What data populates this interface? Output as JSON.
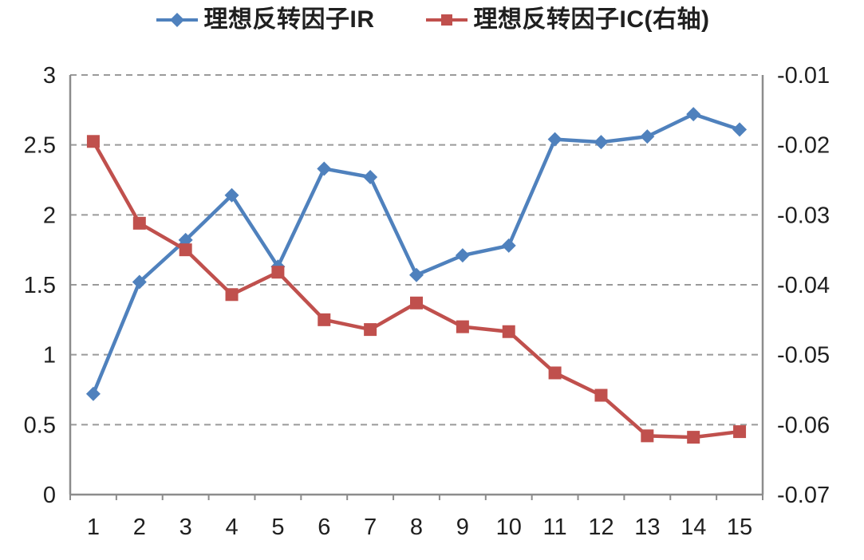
{
  "chart_data": {
    "type": "line",
    "x_labels": [
      "1",
      "2",
      "3",
      "4",
      "5",
      "6",
      "7",
      "8",
      "9",
      "10",
      "11",
      "12",
      "13",
      "14",
      "15"
    ],
    "series": [
      {
        "id": "ir",
        "name": "理想反转因子IR",
        "axis": "left",
        "color": "#4F81BD",
        "marker": "diamond",
        "values": [
          0.72,
          1.52,
          1.82,
          2.14,
          1.63,
          2.33,
          2.27,
          1.57,
          1.71,
          1.78,
          2.54,
          2.52,
          2.56,
          2.72,
          2.61
        ]
      },
      {
        "id": "ic",
        "name": "理想反转因子IC(右轴)",
        "axis": "right",
        "color": "#C0504D",
        "marker": "square",
        "values": [
          -0.0195,
          -0.0312,
          -0.035,
          -0.0414,
          -0.0382,
          -0.045,
          -0.0464,
          -0.0426,
          -0.046,
          -0.0467,
          -0.0526,
          -0.0558,
          -0.0616,
          -0.0618,
          -0.061
        ]
      }
    ],
    "left_axis": {
      "min": 0,
      "max": 3,
      "tick_values": [
        0,
        0.5,
        1,
        1.5,
        2,
        2.5,
        3
      ],
      "tick_labels": [
        "0",
        "0.5",
        "1",
        "1.5",
        "2",
        "2.5",
        "3"
      ]
    },
    "right_axis": {
      "min": -0.07,
      "max": -0.01,
      "tick_values": [
        -0.07,
        -0.06,
        -0.05,
        -0.04,
        -0.03,
        -0.02,
        -0.01
      ],
      "tick_labels": [
        "-0.07",
        "-0.06",
        "-0.05",
        "-0.04",
        "-0.03",
        "-0.02",
        "-0.01"
      ]
    },
    "grid": "horizontal-dashed",
    "legend_position": "top-center",
    "colors": {
      "grid": "#9a9a9a",
      "axis": "#8c8c8c",
      "text": "#1f1f1f"
    }
  },
  "legend": {
    "items": [
      {
        "label": "理想反转因子IR"
      },
      {
        "label": "理想反转因子IC(右轴)"
      }
    ]
  }
}
